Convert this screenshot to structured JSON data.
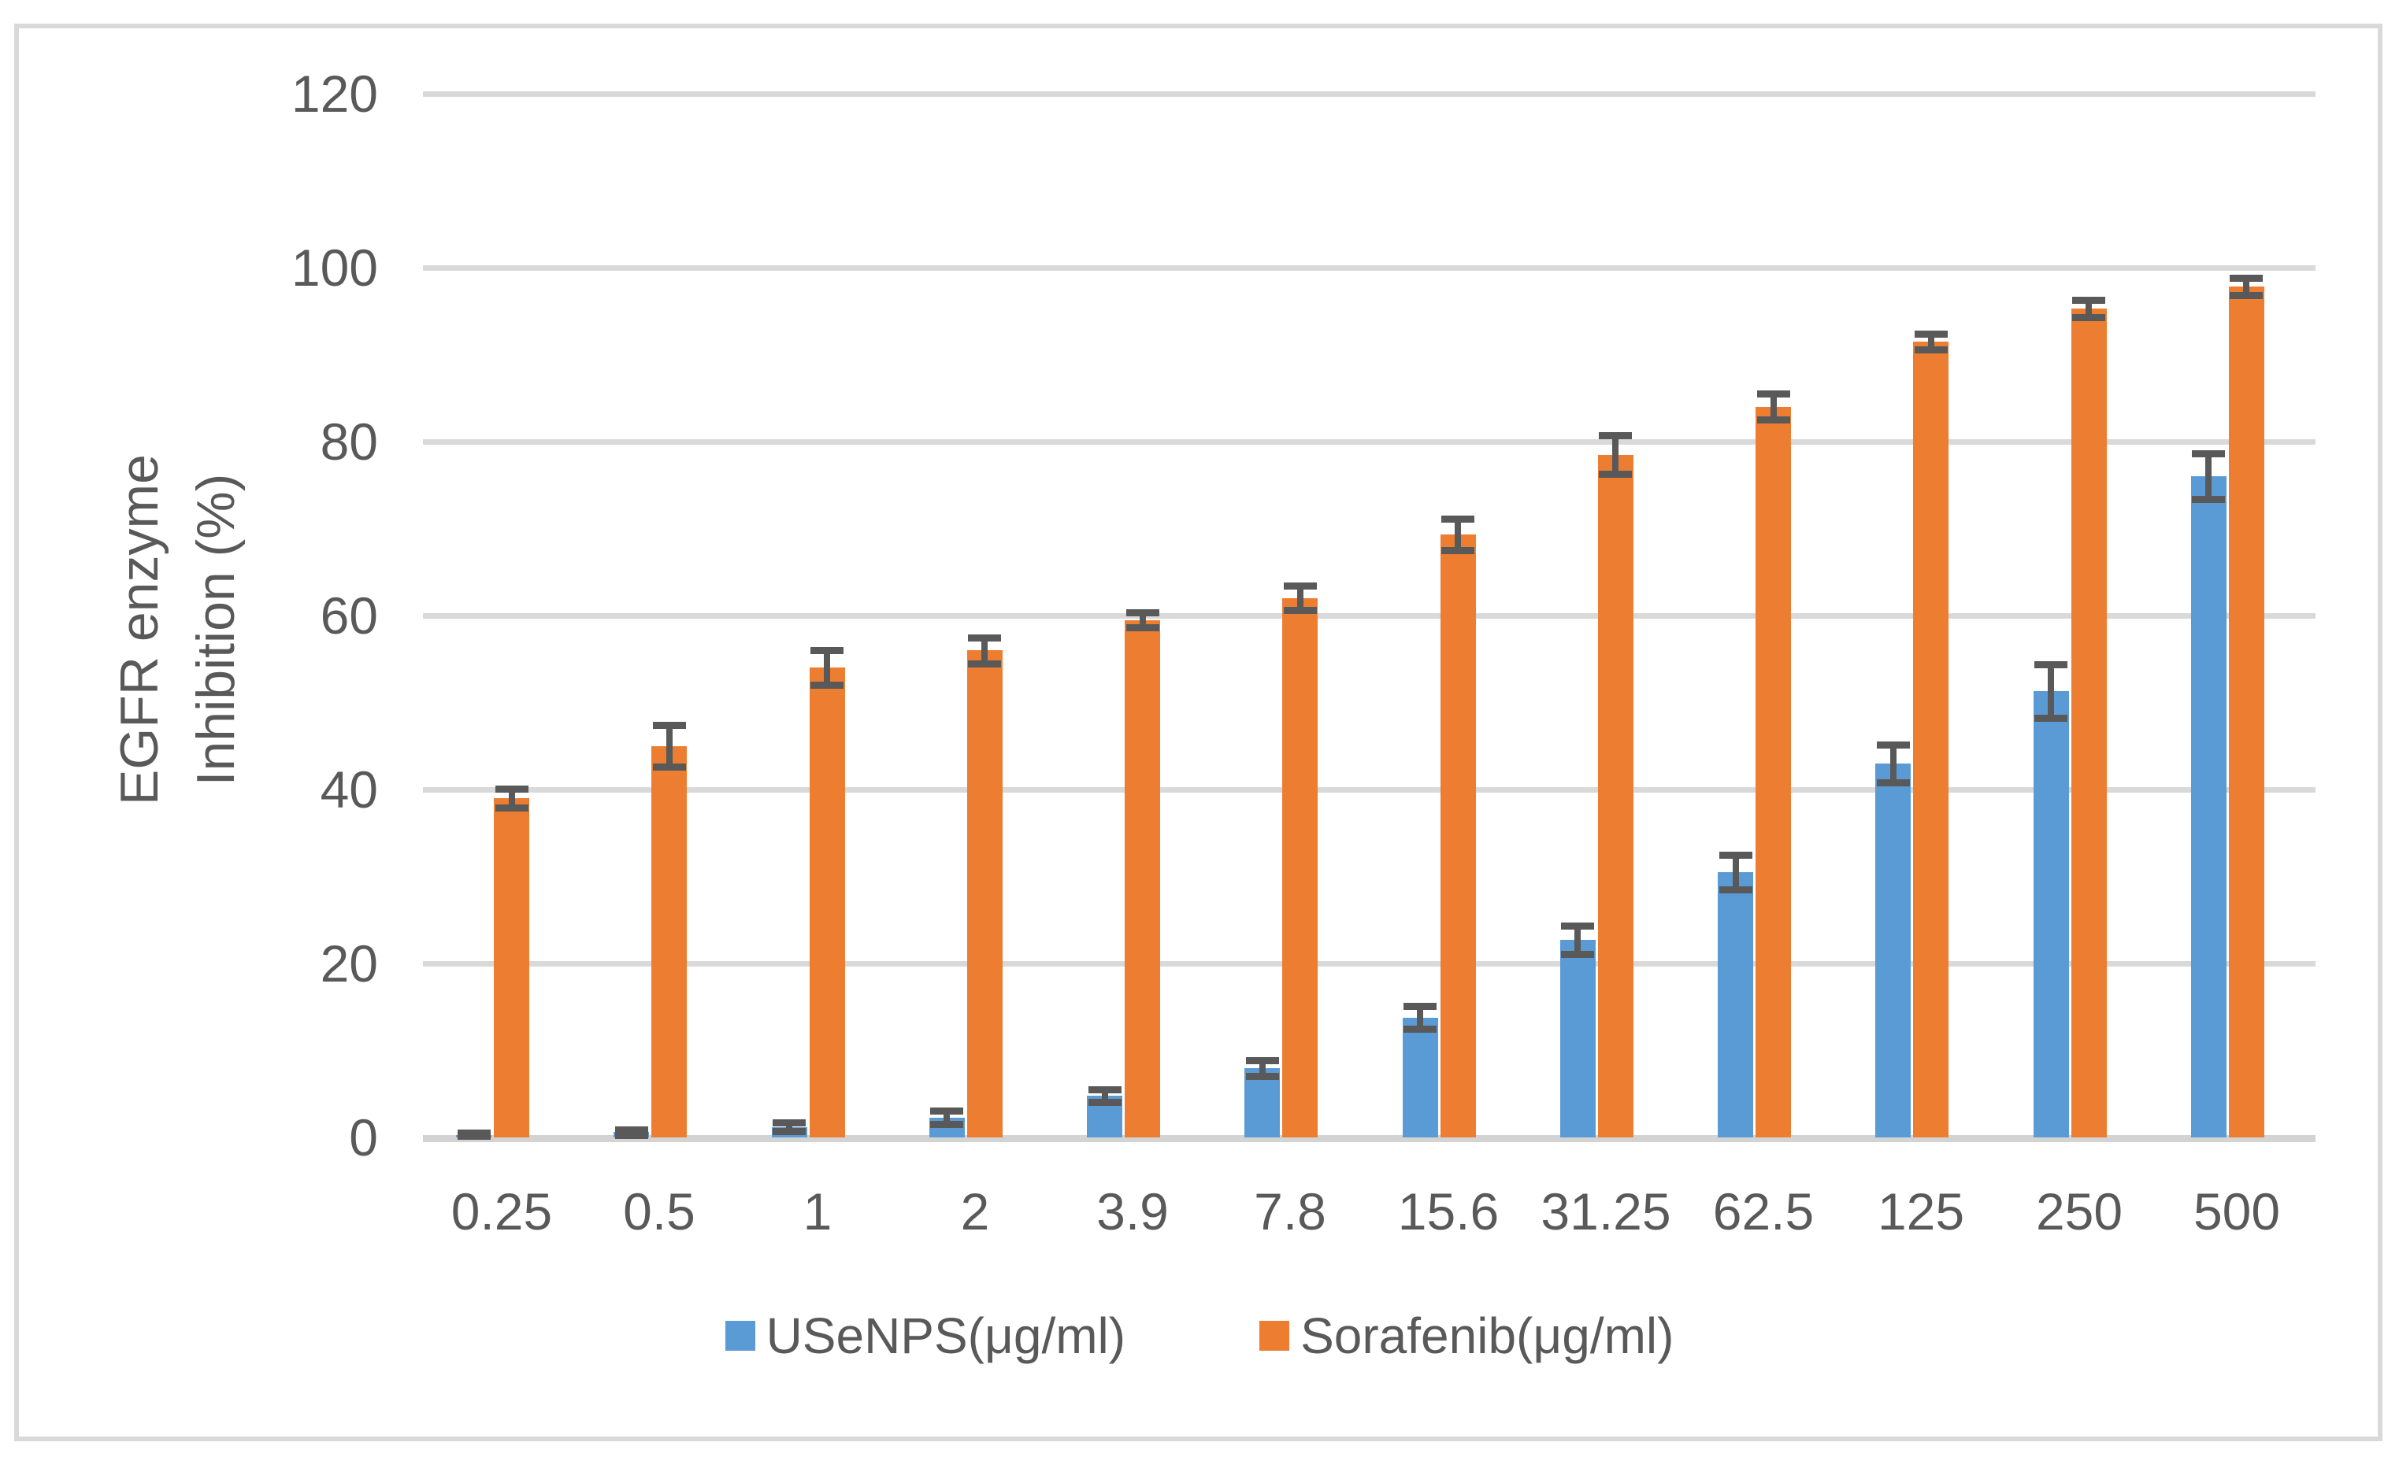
{
  "chart_data": {
    "type": "bar",
    "title": "",
    "xlabel": "",
    "ylabel": "EGFR enzyme Inhibition (%)",
    "ylabel_lines": [
      "EGFR enzyme",
      "Inhibition (%)"
    ],
    "categories": [
      "0.25",
      "0.5",
      "1",
      "2",
      "3.9",
      "7.8",
      "15.6",
      "31.25",
      "62.5",
      "125",
      "250",
      "500"
    ],
    "series": [
      {
        "name": "USeNPS(μg/ml)",
        "color": "#5B9BD5",
        "values": [
          0.3,
          0.6,
          1.2,
          2.3,
          4.8,
          8.0,
          13.8,
          22.7,
          30.5,
          43.0,
          51.3,
          76.0
        ],
        "errors": [
          0.25,
          0.3,
          0.5,
          0.8,
          0.7,
          0.9,
          1.3,
          1.6,
          2.0,
          2.2,
          3.1,
          2.6
        ]
      },
      {
        "name": "Sorafenib(μg/ml)",
        "color": "#ED7D31",
        "values": [
          39.0,
          45.0,
          54.0,
          56.0,
          59.5,
          62.0,
          69.3,
          78.5,
          84.0,
          91.5,
          95.3,
          97.8
        ],
        "errors": [
          1.1,
          2.4,
          2.0,
          1.5,
          0.9,
          1.4,
          1.8,
          2.2,
          1.5,
          0.9,
          1.0,
          1.0
        ]
      }
    ],
    "ylim": [
      0,
      120
    ],
    "ytick_step": 20,
    "grid": true,
    "legend_position": "bottom",
    "gridline_color": "#D9D9D9",
    "axisline_color": "#D3D3D3",
    "error_bar_color": "#595959",
    "text_color": "#595959",
    "background": "#FFFFFF",
    "border_color": "#D9D9D9"
  }
}
